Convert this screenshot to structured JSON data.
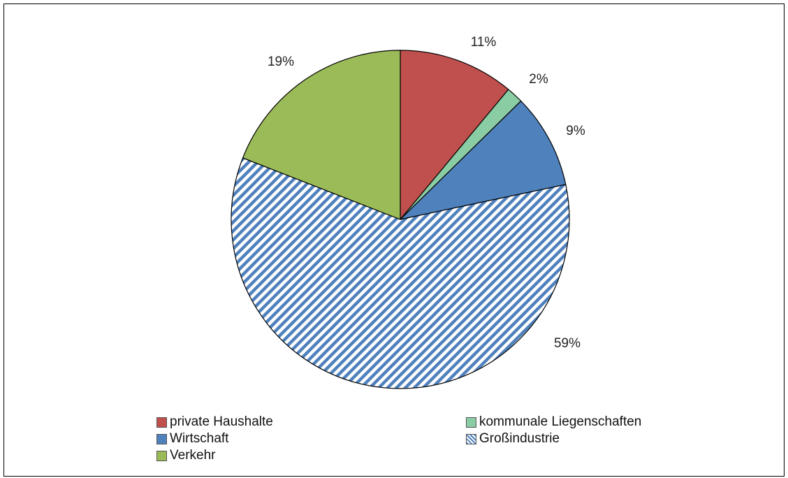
{
  "chart_data": {
    "type": "pie",
    "title": "",
    "start_angle_deg": 0,
    "direction": "clockwise",
    "slices": [
      {
        "name": "private Haushalte",
        "value": 11,
        "label": "11%",
        "color": "#C0504D",
        "pattern": "solid"
      },
      {
        "name": "kommunale Liegenschaften",
        "value": 1.6,
        "label": "2%",
        "color": "#8ACCA3",
        "pattern": "solid"
      },
      {
        "name": "Wirtschaft",
        "value": 9,
        "label": "9%",
        "color": "#4F81BD",
        "pattern": "solid"
      },
      {
        "name": "Großindustrie",
        "value": 59,
        "label": "59%",
        "color": "#4F81BD",
        "pattern": "diagonal-stripes"
      },
      {
        "name": "Verkehr",
        "value": 19,
        "label": "19%",
        "color": "#9BBB59",
        "pattern": "solid"
      }
    ],
    "legend_position": "bottom"
  }
}
